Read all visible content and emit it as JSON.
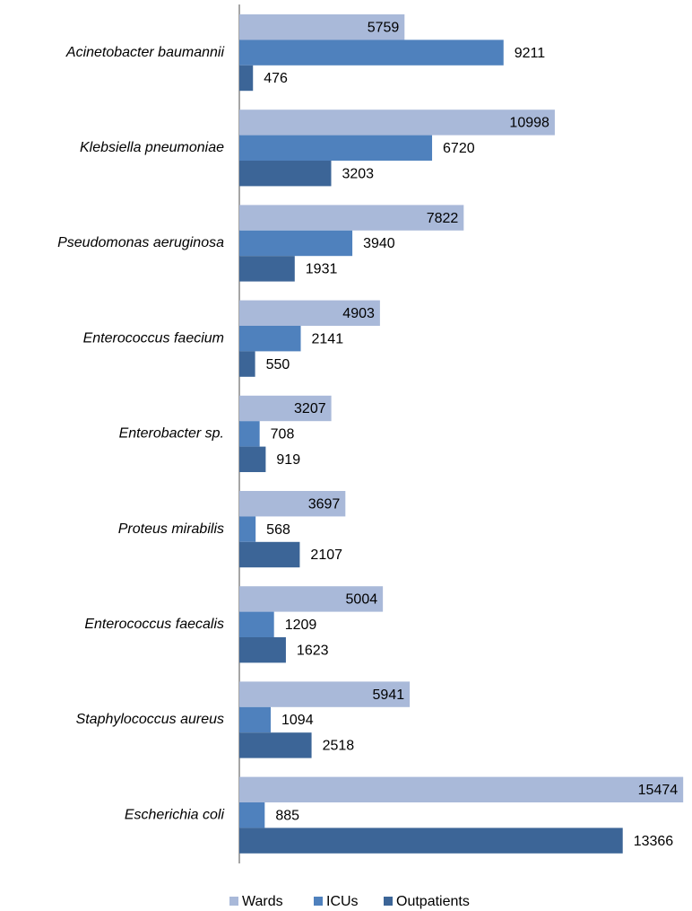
{
  "chart_data": {
    "type": "bar",
    "orientation": "horizontal",
    "categories": [
      "Acinetobacter baumannii",
      "Klebsiella pneumoniae",
      "Pseudomonas aeruginosa",
      "Enterococcus faecium",
      "Enterobacter sp.",
      "Proteus mirabilis",
      "Enterococcus faecalis",
      "Staphylococcus aureus",
      "Escherichia coli"
    ],
    "series": [
      {
        "name": "Wards",
        "color": "#a9b9d9",
        "values": [
          5759,
          10998,
          7822,
          4903,
          3207,
          3697,
          5004,
          5941,
          15474
        ]
      },
      {
        "name": "ICUs",
        "color": "#4f81bd",
        "values": [
          9211,
          6720,
          3940,
          2141,
          708,
          568,
          1209,
          1094,
          885
        ]
      },
      {
        "name": "Outpatients",
        "color": "#3c6597",
        "values": [
          476,
          3203,
          1931,
          550,
          919,
          2107,
          1623,
          2518,
          13366
        ]
      }
    ],
    "xlim": [
      0,
      15500
    ],
    "legend": "bottom"
  }
}
